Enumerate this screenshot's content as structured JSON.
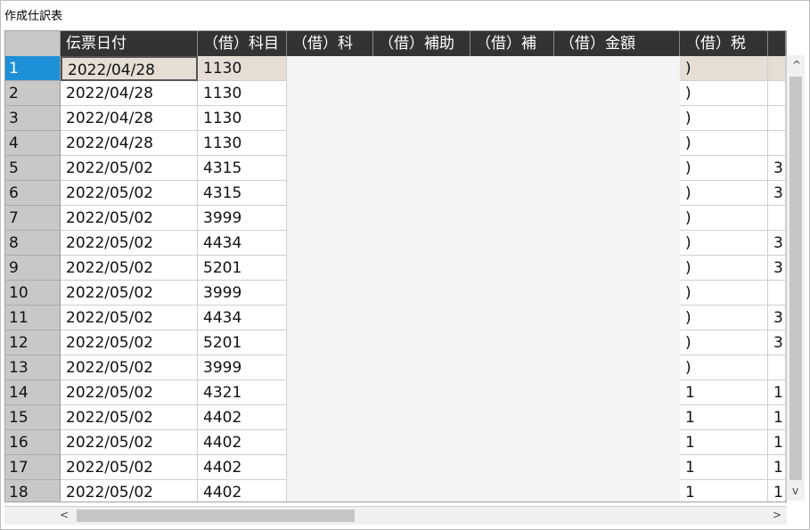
{
  "title": "作成仕訳表",
  "columns": [
    "",
    "伝票日付",
    "（借）科目",
    "（借）科",
    "（借）補助",
    "（借）補",
    "（借）金額",
    "（借）税",
    ""
  ],
  "rows": [
    {
      "num": "1",
      "date": "2022/04/28",
      "code": "1130",
      "tax": ")",
      "extra": ""
    },
    {
      "num": "2",
      "date": "2022/04/28",
      "code": "1130",
      "tax": ")",
      "extra": ""
    },
    {
      "num": "3",
      "date": "2022/04/28",
      "code": "1130",
      "tax": ")",
      "extra": ""
    },
    {
      "num": "4",
      "date": "2022/04/28",
      "code": "1130",
      "tax": ")",
      "extra": ""
    },
    {
      "num": "5",
      "date": "2022/05/02",
      "code": "4315",
      "tax": ")",
      "extra": "3"
    },
    {
      "num": "6",
      "date": "2022/05/02",
      "code": "4315",
      "tax": ")",
      "extra": "3"
    },
    {
      "num": "7",
      "date": "2022/05/02",
      "code": "3999",
      "tax": ")",
      "extra": ""
    },
    {
      "num": "8",
      "date": "2022/05/02",
      "code": "4434",
      "tax": ")",
      "extra": "3"
    },
    {
      "num": "9",
      "date": "2022/05/02",
      "code": "5201",
      "tax": ")",
      "extra": "3"
    },
    {
      "num": "10",
      "date": "2022/05/02",
      "code": "3999",
      "tax": ")",
      "extra": ""
    },
    {
      "num": "11",
      "date": "2022/05/02",
      "code": "4434",
      "tax": ")",
      "extra": "3"
    },
    {
      "num": "12",
      "date": "2022/05/02",
      "code": "5201",
      "tax": ")",
      "extra": "3"
    },
    {
      "num": "13",
      "date": "2022/05/02",
      "code": "3999",
      "tax": ")",
      "extra": ""
    },
    {
      "num": "14",
      "date": "2022/05/02",
      "code": "4321",
      "tax": "1",
      "extra": "1"
    },
    {
      "num": "15",
      "date": "2022/05/02",
      "code": "4402",
      "tax": "1",
      "extra": "1"
    },
    {
      "num": "16",
      "date": "2022/05/02",
      "code": "4402",
      "tax": "1",
      "extra": "1"
    },
    {
      "num": "17",
      "date": "2022/05/02",
      "code": "4402",
      "tax": "1",
      "extra": "1"
    },
    {
      "num": "18",
      "date": "2022/05/02",
      "code": "4402",
      "tax": "1",
      "extra": "1"
    }
  ],
  "scroll": {
    "up": "^",
    "down": "v",
    "left": "<",
    "right": ">"
  }
}
